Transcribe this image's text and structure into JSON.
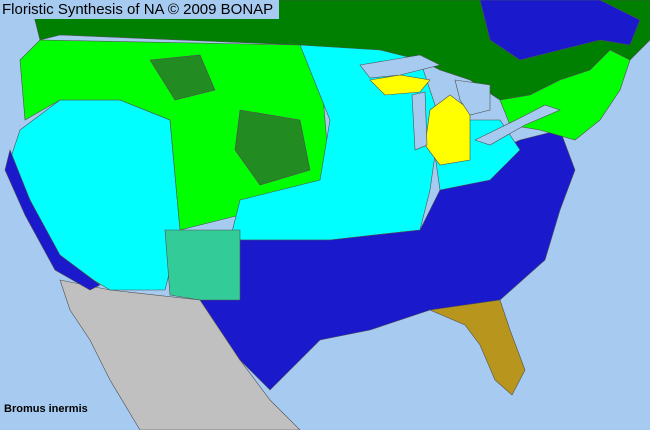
{
  "header": {
    "title": "Floristic Synthesis of NA © 2009 BONAP"
  },
  "map": {
    "species": "Bromus inermis",
    "colors": {
      "ocean": "#a6caf0",
      "canada": "#008000",
      "native_present": "#00ff00",
      "native_county_dark": "#228b22",
      "exotic_present": "#00ffff",
      "exotic_absent_blue": "#0000ff",
      "state_blue": "#1a1acc",
      "noxious_yellow": "#ffff00",
      "florida_brown": "#b8961e",
      "teal_state": "#33cc99",
      "mexico": "#c0c0c0",
      "lakes": "#a6caf0"
    }
  }
}
